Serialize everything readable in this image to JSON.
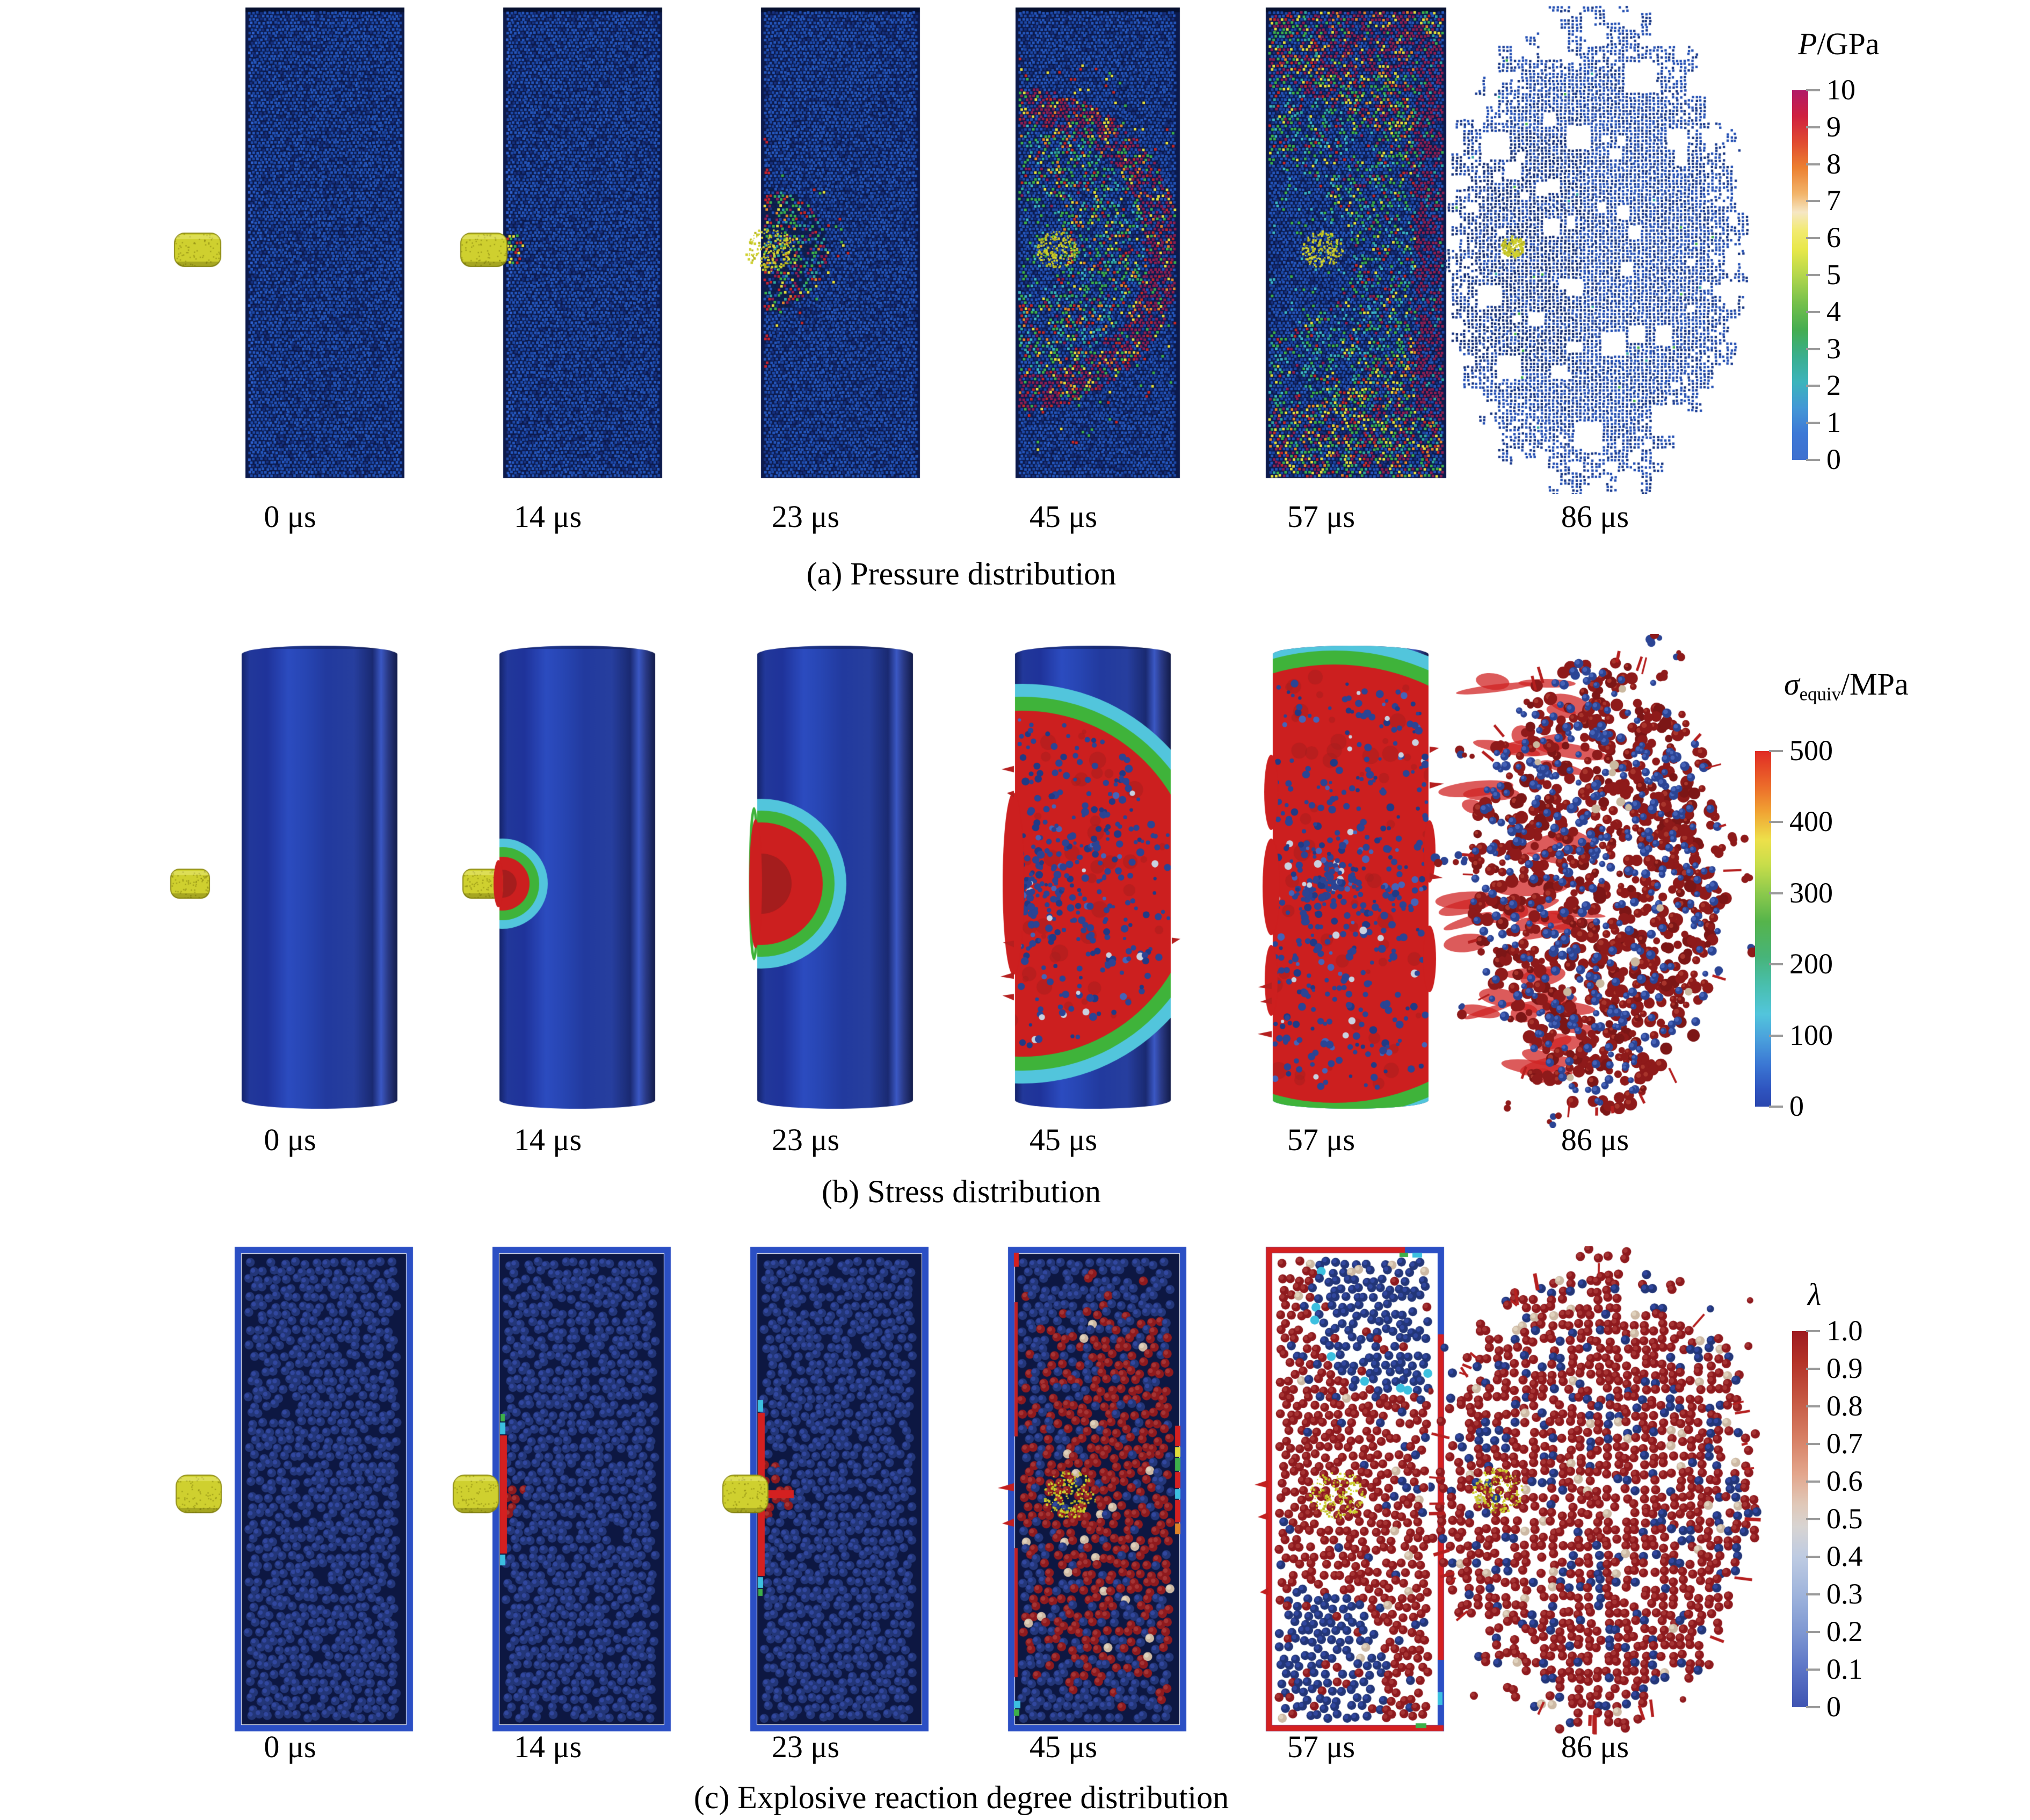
{
  "figure": {
    "background": "#ffffff",
    "rows": [
      {
        "id": "a",
        "caption": "(a) Pressure distribution",
        "times": [
          "0 μs",
          "14 μs",
          "23 μs",
          "45 μs",
          "57 μs",
          "86 μs"
        ],
        "colorbar": {
          "symbol": "P",
          "subscript": "",
          "unit": "/GPa",
          "ticks": [
            "10",
            "9",
            "8",
            "7",
            "6",
            "5",
            "4",
            "3",
            "2",
            "1",
            "0"
          ],
          "stops": [
            [
              "#b11a68",
              0
            ],
            [
              "#cf2140",
              0.07
            ],
            [
              "#e04a30",
              0.14
            ],
            [
              "#ec8030",
              0.21
            ],
            [
              "#f2b46a",
              0.28
            ],
            [
              "#f6e7c4",
              0.33
            ],
            [
              "#f2ea70",
              0.38
            ],
            [
              "#e8e84a",
              0.43
            ],
            [
              "#b4d74b",
              0.5
            ],
            [
              "#72bf4b",
              0.58
            ],
            [
              "#44ad52",
              0.65
            ],
            [
              "#3aaf8e",
              0.72
            ],
            [
              "#3cb4bc",
              0.79
            ],
            [
              "#4397d6",
              0.86
            ],
            [
              "#3d78d6",
              0.93
            ],
            [
              "#3f70cf",
              1
            ]
          ]
        },
        "palette": {
          "bg": "#0c1a4c",
          "blue": "#2456bc",
          "blue2": "#1d49a8",
          "blueDark": "#16307e",
          "lightBlue": "#2e60cc",
          "crimson": "#8e1f52",
          "red": "#c42828",
          "orange": "#e8882a",
          "yellow": "#e5e03c",
          "green": "#3cb04c",
          "teal": "#2fa8a0",
          "cyan": "#3bb6c8",
          "projectile": "#cfd02f"
        },
        "panels": [
          {
            "type": "slabA",
            "stage": 0,
            "seed": 101
          },
          {
            "type": "slabA",
            "stage": 1,
            "seed": 102
          },
          {
            "type": "slabA",
            "stage": 2,
            "seed": 103
          },
          {
            "type": "slabA",
            "stage": 3,
            "seed": 104
          },
          {
            "type": "slabA",
            "stage": 4,
            "seed": 105
          },
          {
            "type": "slabA",
            "stage": 5,
            "seed": 106
          }
        ]
      },
      {
        "id": "b",
        "caption": "(b) Stress distribution",
        "times": [
          "0 μs",
          "14 μs",
          "23 μs",
          "45 μs",
          "57 μs",
          "86 μs"
        ],
        "colorbar": {
          "symbol": "σ",
          "subscript": "equiv",
          "unit": "/MPa",
          "ticks": [
            "500",
            "400",
            "300",
            "200",
            "100",
            "0"
          ],
          "stops": [
            [
              "#e02b24",
              0
            ],
            [
              "#ec6c2a",
              0.1
            ],
            [
              "#f0a233",
              0.17
            ],
            [
              "#ede04a",
              0.25
            ],
            [
              "#c8dd4a",
              0.32
            ],
            [
              "#8cc94c",
              0.4
            ],
            [
              "#55b44b",
              0.48
            ],
            [
              "#47b479",
              0.58
            ],
            [
              "#49bfae",
              0.66
            ],
            [
              "#52c5dc",
              0.74
            ],
            [
              "#4aa0dc",
              0.81
            ],
            [
              "#3b78d4",
              0.88
            ],
            [
              "#2f55c0",
              0.95
            ],
            [
              "#2a46ae",
              1
            ]
          ]
        },
        "palette": {
          "edge": "#15246b",
          "body": "#223a9e",
          "stripe": "#2c4cc0",
          "stripe2": "#3b58c4",
          "dark": "#131c4a",
          "red": "#cc1f1f",
          "redDark": "#a51d1d",
          "green": "#3fb33a",
          "cyan": "#52c5dc",
          "sphere": "#2b4494",
          "sphereHi": "#4563b8",
          "pale": "#c9d2e0",
          "smear": "#d02424",
          "blob": "#8e1a1a",
          "blobHi": "#a8352c",
          "paleTan": "#cbb9a0",
          "projectile": "#cfd02f"
        },
        "panels": [
          {
            "type": "cylB",
            "stage": 0,
            "seed": 201
          },
          {
            "type": "cylB",
            "stage": 1,
            "seed": 202
          },
          {
            "type": "cylB",
            "stage": 2,
            "seed": 203
          },
          {
            "type": "cylB",
            "stage": 3,
            "seed": 204
          },
          {
            "type": "cylB",
            "stage": 4,
            "seed": 205
          },
          {
            "type": "cylB",
            "stage": 5,
            "seed": 206
          }
        ]
      },
      {
        "id": "c",
        "caption": "(c) Explosive reaction degree distribution",
        "times": [
          "0 μs",
          "14 μs",
          "23 μs",
          "45 μs",
          "57 μs",
          "86 μs"
        ],
        "colorbar": {
          "symbol": "λ",
          "subscript": "",
          "unit": "",
          "ticks": [
            "1.0",
            "0.9",
            "0.8",
            "0.7",
            "0.6",
            "0.5",
            "0.4",
            "0.3",
            "0.2",
            "0.1",
            "0"
          ],
          "stops": [
            [
              "#9e1b20",
              0
            ],
            [
              "#b33227",
              0.08
            ],
            [
              "#c55742",
              0.18
            ],
            [
              "#d67d62",
              0.28
            ],
            [
              "#e3a68c",
              0.38
            ],
            [
              "#e0c8b8",
              0.46
            ],
            [
              "#d8d4d2",
              0.52
            ],
            [
              "#becbe2",
              0.6
            ],
            [
              "#9fb4dc",
              0.7
            ],
            [
              "#7e97d2",
              0.8
            ],
            [
              "#5b74c6",
              0.9
            ],
            [
              "#3f54b2",
              1
            ]
          ]
        },
        "palette": {
          "frame": "#2b4fc4",
          "bg": "#0d1742",
          "navy": "#233678",
          "navyHi": "#31479e",
          "red": "#8e1a1e",
          "redHi": "#a53434",
          "pale": "#cdb9a4",
          "paleHi": "#e0d2bd",
          "brightRed": "#d42020",
          "cyan": "#3cc0e0",
          "green": "#3db04a",
          "yellow": "#e0dc3a",
          "orange": "#e08428",
          "projectile": "#cfd02f"
        },
        "panels": [
          {
            "type": "granC",
            "stage": 0,
            "seed": 301
          },
          {
            "type": "granC",
            "stage": 1,
            "seed": 302
          },
          {
            "type": "granC",
            "stage": 2,
            "seed": 303
          },
          {
            "type": "granC",
            "stage": 3,
            "seed": 304
          },
          {
            "type": "granC",
            "stage": 4,
            "seed": 305
          },
          {
            "type": "granC",
            "stage": 5,
            "seed": 306
          }
        ]
      }
    ]
  }
}
